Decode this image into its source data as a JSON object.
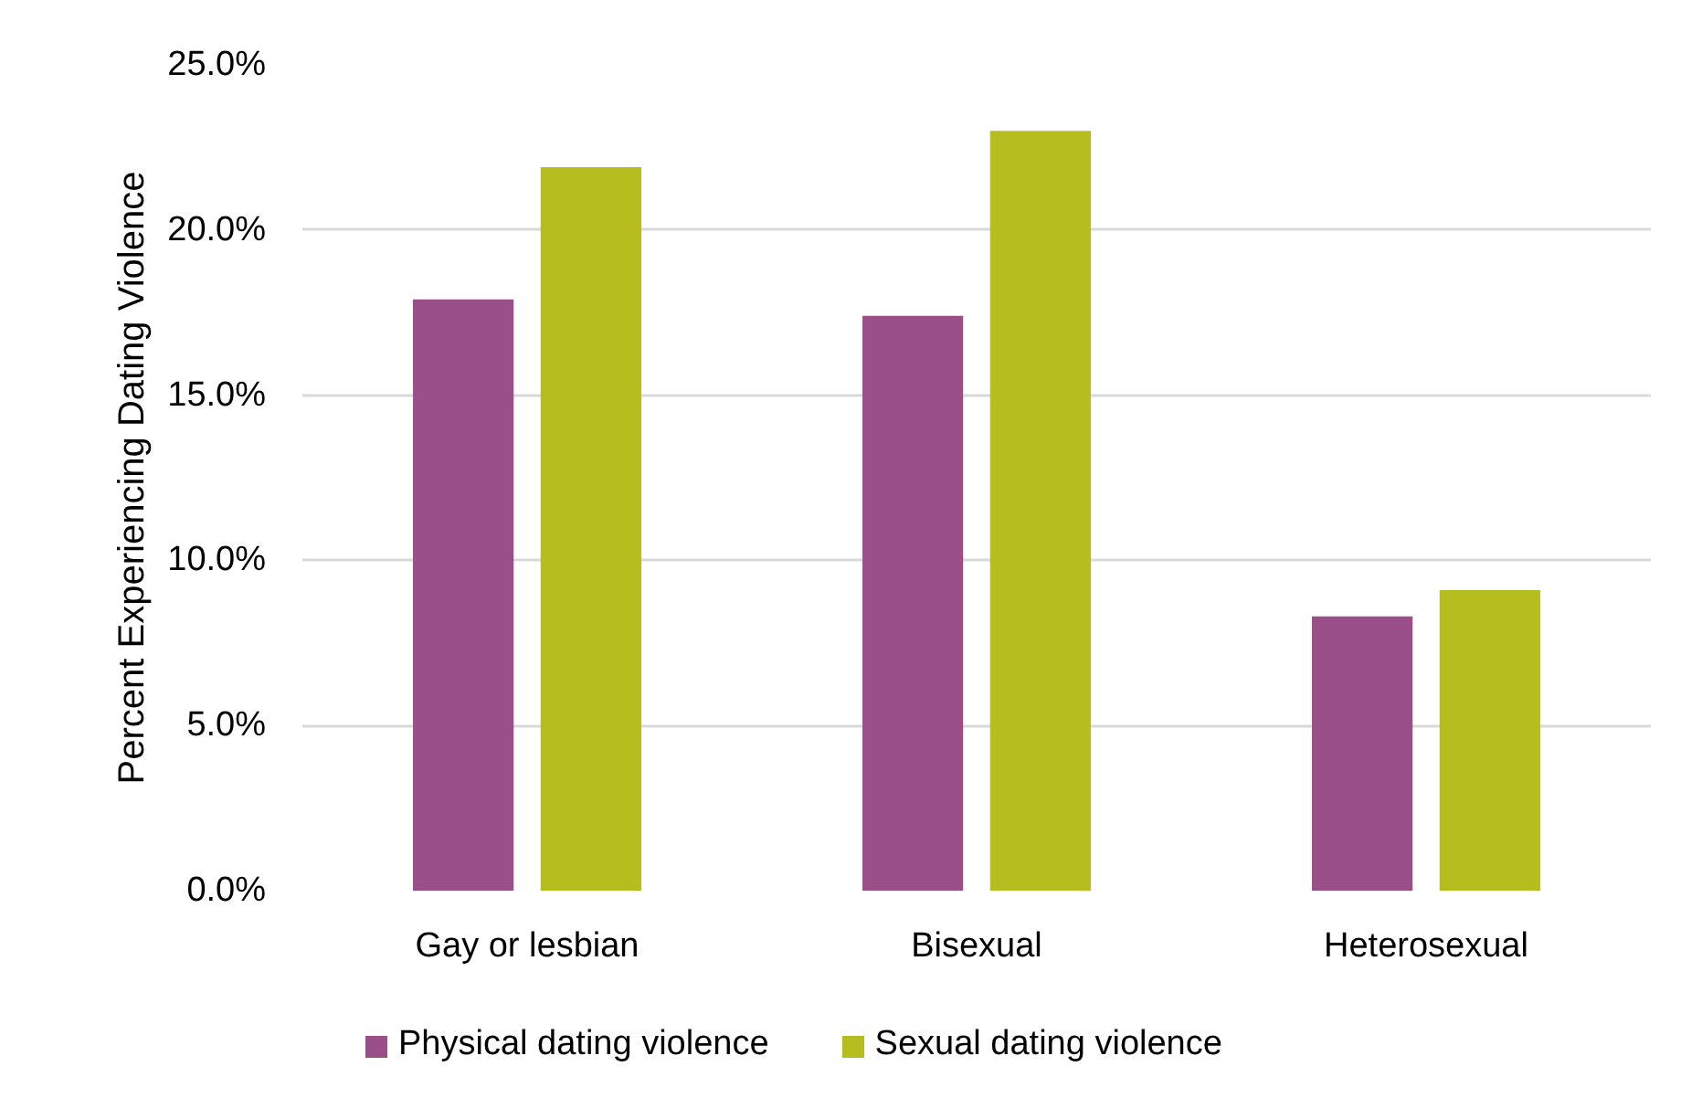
{
  "chart_data": {
    "type": "bar",
    "ylabel": "Percent Experiencing Dating Violence",
    "categories": [
      "Gay or lesbian",
      "Bisexual",
      "Heterosexual"
    ],
    "series": [
      {
        "name": "Physical dating violence",
        "color": "#9b4f88",
        "values": [
          17.9,
          17.4,
          8.3
        ]
      },
      {
        "name": "Sexual dating violence",
        "color": "#b5bd1f",
        "values": [
          21.9,
          23.0,
          9.1
        ]
      }
    ],
    "ylim": [
      0,
      25
    ],
    "yticks": [
      {
        "value": 0,
        "label": "0.0%"
      },
      {
        "value": 5,
        "label": "5.0%"
      },
      {
        "value": 10,
        "label": "10.0%"
      },
      {
        "value": 15,
        "label": "15.0%"
      },
      {
        "value": 20,
        "label": "20.0%"
      },
      {
        "value": 25,
        "label": "25.0%"
      }
    ],
    "grid": "y",
    "legend": "bottom"
  }
}
